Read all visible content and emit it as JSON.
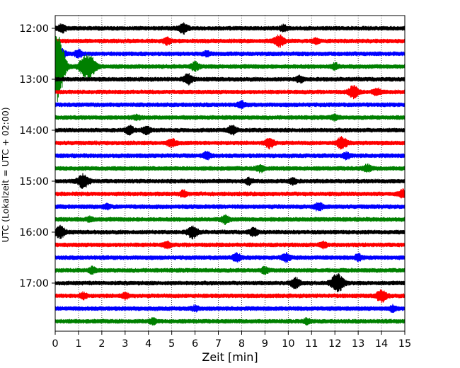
{
  "chart_data": {
    "type": "line",
    "title": "",
    "xlabel": "Zeit  [min]",
    "ylabel": "UTC (Lokalzeit = UTC + 02:00)",
    "xlim": [
      0,
      15
    ],
    "x_ticks": [
      "0",
      "1",
      "2",
      "3",
      "4",
      "5",
      "6",
      "7",
      "8",
      "9",
      "10",
      "11",
      "12",
      "13",
      "14",
      "15"
    ],
    "y_tick_labels": [
      "12:00",
      "13:00",
      "14:00",
      "15:00",
      "16:00",
      "17:00"
    ],
    "grid": "vertical dotted lines at each minute",
    "trace_interval_minutes": 15,
    "trace_colors": [
      "#000000",
      "#ff0000",
      "#0000ff",
      "#008000"
    ],
    "series": [
      {
        "start": "12:00",
        "color": "#000000",
        "events": [
          [
            0.3,
            2.0
          ],
          [
            5.5,
            2.5
          ],
          [
            9.8,
            1.5
          ]
        ]
      },
      {
        "start": "12:15",
        "color": "#ff0000",
        "events": [
          [
            9.6,
            3.0
          ],
          [
            4.8,
            1.5
          ],
          [
            11.2,
            1.2
          ]
        ]
      },
      {
        "start": "12:30",
        "color": "#0000ff",
        "events": [
          [
            0.2,
            3.0
          ],
          [
            1.0,
            1.8
          ],
          [
            6.5,
            1.2
          ]
        ]
      },
      {
        "start": "12:45",
        "color": "#008000",
        "events": [
          [
            0.05,
            14.0
          ],
          [
            0.2,
            8.0
          ],
          [
            1.3,
            6.0
          ],
          [
            1.6,
            3.0
          ],
          [
            6.0,
            2.0
          ],
          [
            12.0,
            1.5
          ]
        ]
      },
      {
        "start": "13:00",
        "color": "#000000",
        "events": [
          [
            5.7,
            2.5
          ],
          [
            10.5,
            1.5
          ]
        ]
      },
      {
        "start": "13:15",
        "color": "#ff0000",
        "events": [
          [
            12.8,
            3.0
          ],
          [
            13.8,
            1.8
          ]
        ]
      },
      {
        "start": "13:30",
        "color": "#0000ff",
        "events": [
          [
            8.0,
            1.5
          ]
        ]
      },
      {
        "start": "13:45",
        "color": "#008000",
        "events": [
          [
            3.5,
            1.3
          ],
          [
            12.0,
            1.3
          ]
        ]
      },
      {
        "start": "14:00",
        "color": "#000000",
        "events": [
          [
            3.2,
            2.0
          ],
          [
            3.9,
            2.0
          ],
          [
            7.6,
            2.2
          ]
        ]
      },
      {
        "start": "14:15",
        "color": "#ff0000",
        "events": [
          [
            5.0,
            2.0
          ],
          [
            9.2,
            2.5
          ],
          [
            12.3,
            3.0
          ]
        ]
      },
      {
        "start": "14:30",
        "color": "#0000ff",
        "events": [
          [
            6.5,
            1.8
          ],
          [
            12.5,
            1.5
          ]
        ]
      },
      {
        "start": "14:45",
        "color": "#008000",
        "events": [
          [
            8.8,
            1.8
          ],
          [
            13.4,
            1.8
          ]
        ]
      },
      {
        "start": "15:00",
        "color": "#000000",
        "events": [
          [
            1.2,
            3.5
          ],
          [
            8.3,
            1.5
          ],
          [
            10.2,
            1.5
          ]
        ]
      },
      {
        "start": "15:15",
        "color": "#ff0000",
        "events": [
          [
            5.5,
            1.5
          ],
          [
            14.9,
            2.0
          ]
        ]
      },
      {
        "start": "15:30",
        "color": "#0000ff",
        "events": [
          [
            11.3,
            2.0
          ],
          [
            2.2,
            1.2
          ]
        ]
      },
      {
        "start": "15:45",
        "color": "#008000",
        "events": [
          [
            7.3,
            2.0
          ],
          [
            1.5,
            1.3
          ]
        ]
      },
      {
        "start": "16:00",
        "color": "#000000",
        "events": [
          [
            0.2,
            3.0
          ],
          [
            5.9,
            3.0
          ],
          [
            8.5,
            2.0
          ]
        ]
      },
      {
        "start": "16:15",
        "color": "#ff0000",
        "events": [
          [
            4.8,
            1.5
          ],
          [
            11.5,
            1.5
          ]
        ]
      },
      {
        "start": "16:30",
        "color": "#0000ff",
        "events": [
          [
            7.8,
            2.0
          ],
          [
            9.9,
            2.0
          ],
          [
            13.0,
            1.5
          ]
        ]
      },
      {
        "start": "16:45",
        "color": "#008000",
        "events": [
          [
            1.6,
            1.5
          ],
          [
            9.0,
            1.5
          ]
        ]
      },
      {
        "start": "17:00",
        "color": "#000000",
        "events": [
          [
            10.3,
            2.5
          ],
          [
            12.1,
            5.0
          ]
        ]
      },
      {
        "start": "17:15",
        "color": "#ff0000",
        "events": [
          [
            14.0,
            3.0
          ],
          [
            1.2,
            1.5
          ],
          [
            3.0,
            1.5
          ]
        ]
      },
      {
        "start": "17:30",
        "color": "#0000ff",
        "events": [
          [
            14.5,
            1.5
          ],
          [
            6.0,
            1.2
          ]
        ]
      },
      {
        "start": "17:45",
        "color": "#008000",
        "events": [
          [
            4.2,
            1.3
          ],
          [
            10.8,
            1.3
          ]
        ]
      }
    ]
  }
}
